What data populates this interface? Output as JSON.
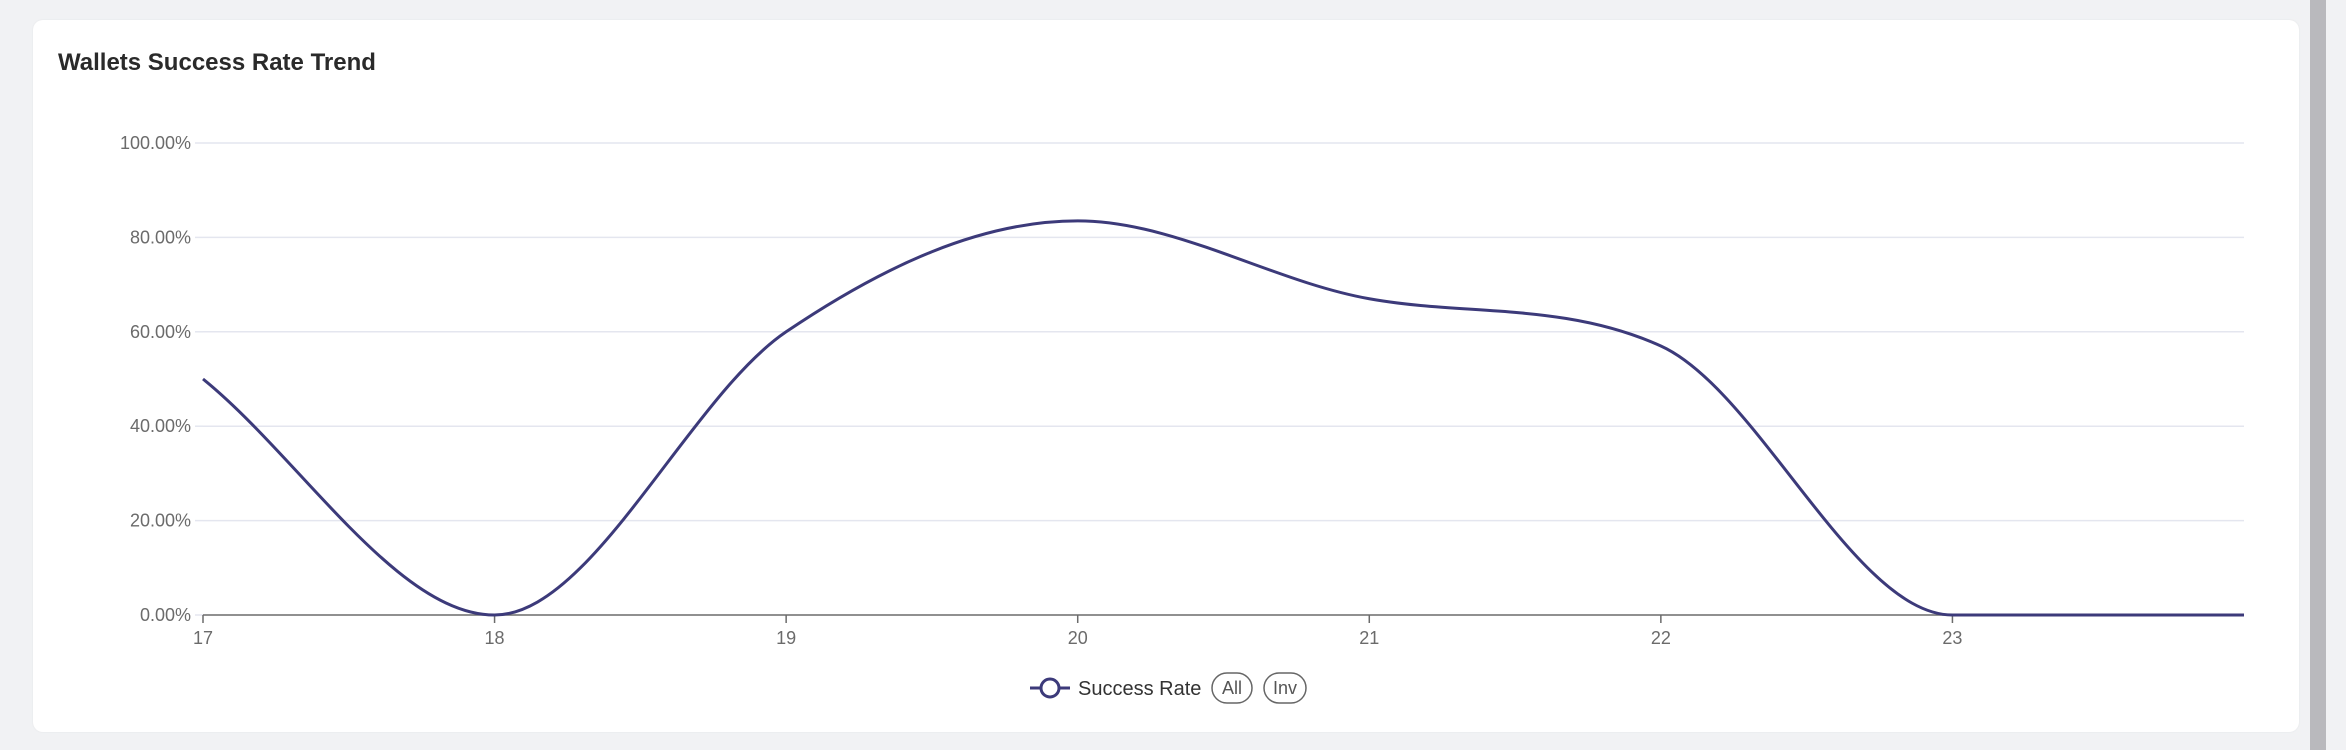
{
  "card": {
    "title": "Wallets Success Rate Trend"
  },
  "colors": {
    "line": "#3c3a7a",
    "grid": "#e4e6ef",
    "axis": "#6b6b6b",
    "background": "#f1f2f4",
    "card": "#ffffff"
  },
  "legend": {
    "series_label": "Success Rate",
    "all_label": "All",
    "inv_label": "Inv",
    "marker_icon": "circle-line-icon"
  },
  "chart_data": {
    "type": "line",
    "title": "Wallets Success Rate Trend",
    "xlabel": "",
    "ylabel": "",
    "x_ticks": [
      17,
      18,
      19,
      20,
      21,
      22,
      23
    ],
    "x_tick_labels": [
      "17",
      "18",
      "19",
      "20",
      "21",
      "22",
      "23"
    ],
    "xlim": [
      17,
      24
    ],
    "ylim": [
      0,
      100
    ],
    "y_ticks": [
      0,
      20,
      40,
      60,
      80,
      100
    ],
    "y_tick_labels": [
      "0.00%",
      "20.00%",
      "40.00%",
      "60.00%",
      "80.00%",
      "100.00%"
    ],
    "grid": true,
    "legend_position": "bottom-center",
    "smooth": true,
    "series": [
      {
        "name": "Success Rate",
        "x": [
          17,
          18,
          19,
          20,
          21,
          22,
          23,
          24
        ],
        "values": [
          50,
          0,
          60,
          83.5,
          67,
          57,
          0,
          0
        ]
      }
    ]
  }
}
